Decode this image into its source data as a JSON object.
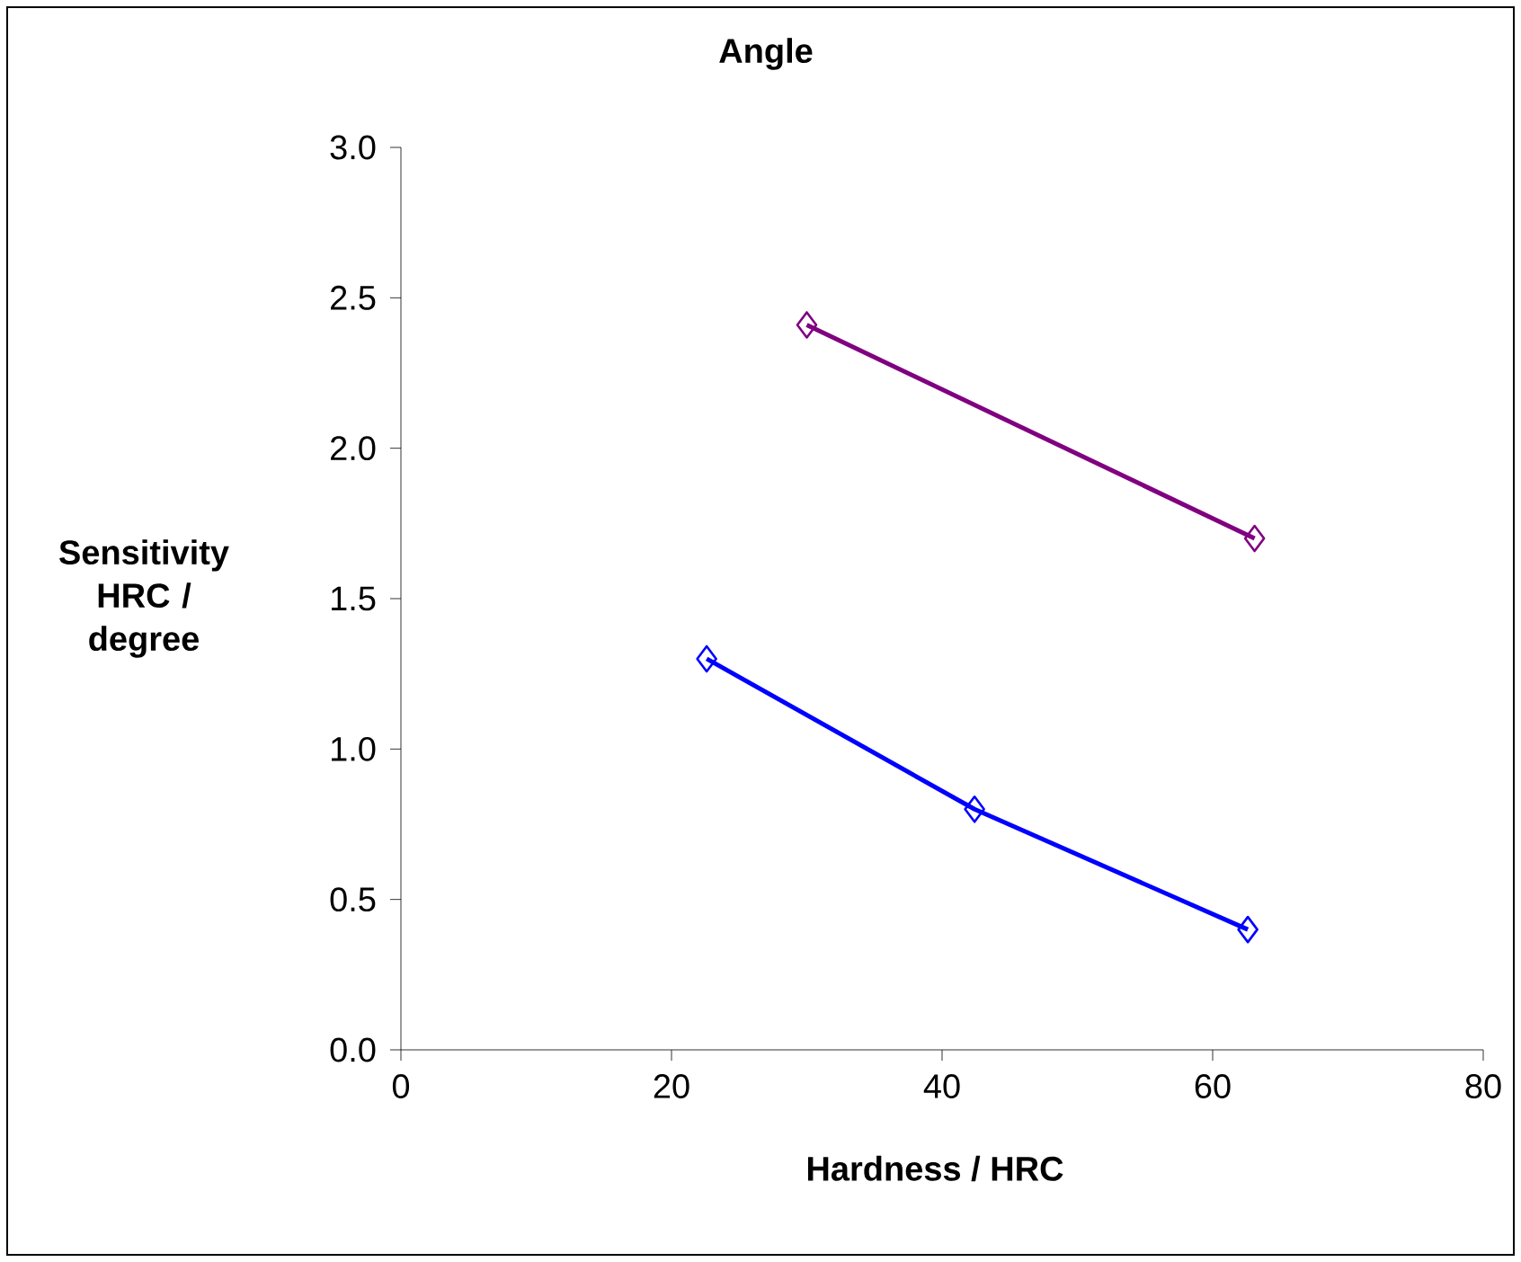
{
  "chart_data": {
    "type": "line",
    "title": "Angle",
    "xlabel": "Hardness / HRC",
    "ylabel": "Sensitivity HRC / degree",
    "series": [
      {
        "color": "#800080",
        "x": [
          30.0,
          63.1
        ],
        "values": [
          2.41,
          1.7
        ]
      },
      {
        "color": "#0000ff",
        "x": [
          22.6,
          42.4,
          62.6
        ],
        "values": [
          1.3,
          0.8,
          0.4
        ]
      }
    ],
    "xlim": [
      0,
      80
    ],
    "xticks": [
      0,
      20,
      40,
      60,
      80
    ],
    "ylim": [
      0,
      3.0
    ],
    "yticks": [
      {
        "value": 0,
        "label": "0.0"
      },
      {
        "value": 0.5,
        "label": "0.5"
      },
      {
        "value": 1.0,
        "label": "1.0"
      },
      {
        "value": 1.5,
        "label": "1.5"
      },
      {
        "value": 2.0,
        "label": "2.0"
      },
      {
        "value": 2.5,
        "label": "2.5"
      },
      {
        "value": 3.0,
        "label": "3.0"
      }
    ],
    "grid": false,
    "marker": "diamond",
    "line_style": "solid"
  }
}
